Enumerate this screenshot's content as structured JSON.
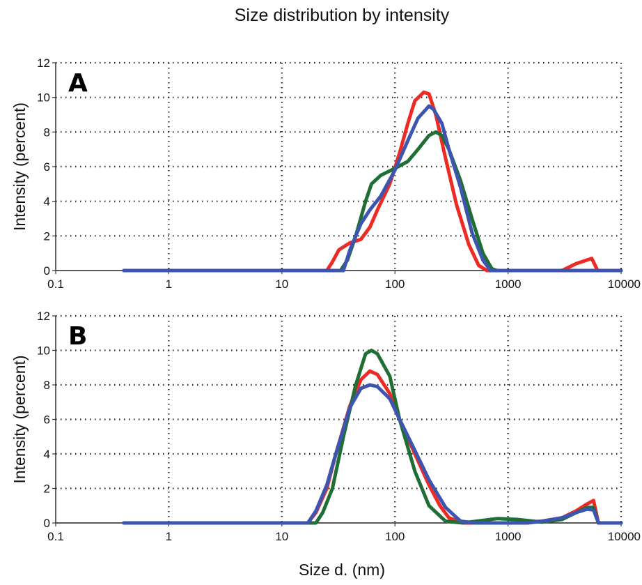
{
  "title": "Size distribution by intensity",
  "xlabel": "Size d. (nm)",
  "colors": {
    "red": "#ee2a24",
    "green": "#1f6e33",
    "blue": "#3e55b0"
  },
  "chart_data": [
    {
      "type": "line",
      "panel": "A",
      "title": "",
      "xlabel": "Size d. (nm)",
      "ylabel": "Intensity (percent)",
      "xscale": "log",
      "xlim": [
        0.1,
        10000
      ],
      "ylim": [
        0,
        12
      ],
      "xticks": [
        "0.1",
        "1",
        "10",
        "100",
        "1000",
        "10000"
      ],
      "yticks": [
        "0",
        "2",
        "4",
        "6",
        "8",
        "10",
        "12"
      ],
      "grid": true,
      "legend": "none",
      "series": [
        {
          "color": "#ee2a24",
          "points": [
            [
              0.4,
              0
            ],
            [
              25,
              0
            ],
            [
              28,
              0.5
            ],
            [
              32,
              1.2
            ],
            [
              40,
              1.6
            ],
            [
              50,
              1.8
            ],
            [
              60,
              2.5
            ],
            [
              70,
              3.5
            ],
            [
              90,
              5.0
            ],
            [
              110,
              6.8
            ],
            [
              130,
              8.5
            ],
            [
              150,
              9.8
            ],
            [
              180,
              10.3
            ],
            [
              200,
              10.2
            ],
            [
              230,
              9.0
            ],
            [
              280,
              6.5
            ],
            [
              350,
              3.8
            ],
            [
              450,
              1.5
            ],
            [
              550,
              0.3
            ],
            [
              650,
              0
            ],
            [
              3000,
              0
            ],
            [
              4000,
              0.4
            ],
            [
              5500,
              0.7
            ],
            [
              6200,
              0
            ],
            [
              10000,
              0
            ]
          ]
        },
        {
          "color": "#1f6e33",
          "points": [
            [
              0.4,
              0
            ],
            [
              33,
              0
            ],
            [
              38,
              0.6
            ],
            [
              45,
              2.0
            ],
            [
              55,
              4.0
            ],
            [
              62,
              5.0
            ],
            [
              75,
              5.5
            ],
            [
              100,
              5.9
            ],
            [
              130,
              6.3
            ],
            [
              160,
              7.0
            ],
            [
              200,
              7.8
            ],
            [
              230,
              8.0
            ],
            [
              260,
              7.8
            ],
            [
              300,
              7.0
            ],
            [
              380,
              5.2
            ],
            [
              480,
              3.0
            ],
            [
              600,
              1.0
            ],
            [
              720,
              0.1
            ],
            [
              800,
              0
            ],
            [
              10000,
              0
            ]
          ]
        },
        {
          "color": "#3e55b0",
          "points": [
            [
              0.4,
              0
            ],
            [
              35,
              0
            ],
            [
              40,
              1.2
            ],
            [
              50,
              2.7
            ],
            [
              60,
              3.5
            ],
            [
              75,
              4.3
            ],
            [
              100,
              5.8
            ],
            [
              130,
              7.5
            ],
            [
              160,
              8.8
            ],
            [
              200,
              9.5
            ],
            [
              220,
              9.3
            ],
            [
              260,
              8.5
            ],
            [
              300,
              7.0
            ],
            [
              380,
              4.8
            ],
            [
              480,
              2.2
            ],
            [
              600,
              0.6
            ],
            [
              700,
              0
            ],
            [
              10000,
              0
            ]
          ]
        }
      ]
    },
    {
      "type": "line",
      "panel": "B",
      "title": "",
      "xlabel": "Size d. (nm)",
      "ylabel": "Intensity (percent)",
      "xscale": "log",
      "xlim": [
        0.1,
        10000
      ],
      "ylim": [
        0,
        12
      ],
      "xticks": [
        "0.1",
        "1",
        "10",
        "100",
        "1000",
        "10000"
      ],
      "yticks": [
        "0",
        "2",
        "4",
        "6",
        "8",
        "10",
        "12"
      ],
      "grid": true,
      "legend": "none",
      "series": [
        {
          "color": "#ee2a24",
          "points": [
            [
              0.4,
              0
            ],
            [
              17,
              0
            ],
            [
              20,
              0.6
            ],
            [
              25,
              2.0
            ],
            [
              30,
              4.0
            ],
            [
              40,
              6.8
            ],
            [
              50,
              8.3
            ],
            [
              60,
              8.8
            ],
            [
              70,
              8.6
            ],
            [
              90,
              7.5
            ],
            [
              110,
              6.0
            ],
            [
              150,
              4.0
            ],
            [
              200,
              2.2
            ],
            [
              250,
              1.0
            ],
            [
              300,
              0.3
            ],
            [
              400,
              0
            ],
            [
              1000,
              0
            ],
            [
              2000,
              0.1
            ],
            [
              3000,
              0.3
            ],
            [
              4000,
              0.7
            ],
            [
              5000,
              1.1
            ],
            [
              5700,
              1.3
            ],
            [
              6300,
              0
            ],
            [
              10000,
              0
            ]
          ]
        },
        {
          "color": "#1f6e33",
          "points": [
            [
              0.4,
              0
            ],
            [
              20,
              0
            ],
            [
              23,
              0.6
            ],
            [
              28,
              2.0
            ],
            [
              35,
              5.0
            ],
            [
              45,
              8.0
            ],
            [
              55,
              9.8
            ],
            [
              62,
              10.0
            ],
            [
              70,
              9.8
            ],
            [
              90,
              8.5
            ],
            [
              110,
              6.0
            ],
            [
              150,
              3.0
            ],
            [
              200,
              1.0
            ],
            [
              280,
              0.1
            ],
            [
              400,
              0
            ],
            [
              600,
              0.15
            ],
            [
              800,
              0.25
            ],
            [
              1200,
              0.2
            ],
            [
              2000,
              0.05
            ],
            [
              3000,
              0.2
            ],
            [
              4000,
              0.6
            ],
            [
              5000,
              0.9
            ],
            [
              5700,
              0.9
            ],
            [
              6300,
              0
            ],
            [
              10000,
              0
            ]
          ]
        },
        {
          "color": "#3e55b0",
          "points": [
            [
              0.4,
              0
            ],
            [
              17,
              0
            ],
            [
              20,
              0.7
            ],
            [
              25,
              2.2
            ],
            [
              30,
              4.0
            ],
            [
              40,
              6.7
            ],
            [
              50,
              7.8
            ],
            [
              60,
              8.0
            ],
            [
              70,
              7.9
            ],
            [
              90,
              7.2
            ],
            [
              110,
              6.0
            ],
            [
              150,
              4.2
            ],
            [
              200,
              2.5
            ],
            [
              280,
              0.9
            ],
            [
              380,
              0.1
            ],
            [
              500,
              0
            ],
            [
              1500,
              0
            ],
            [
              2000,
              0.1
            ],
            [
              3000,
              0.3
            ],
            [
              4000,
              0.6
            ],
            [
              5000,
              0.8
            ],
            [
              5700,
              0.75
            ],
            [
              6300,
              0
            ],
            [
              10000,
              0
            ]
          ]
        }
      ]
    }
  ]
}
